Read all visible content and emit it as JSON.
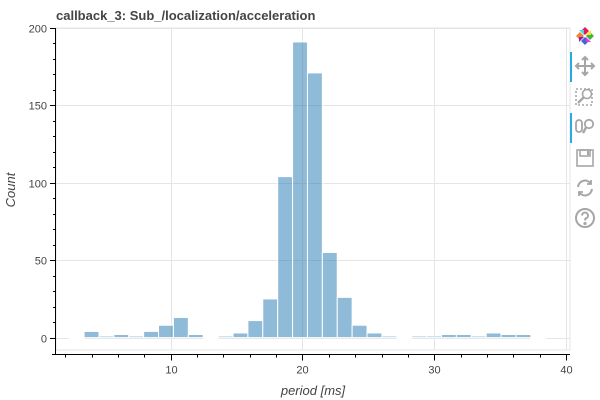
{
  "chart_data": {
    "type": "bar",
    "title": "callback_3: Sub_/localization/acceleration",
    "xlabel": "period [ms]",
    "ylabel": "Count",
    "xlim": [
      1.3,
      40.3
    ],
    "ylim": [
      -8,
      200
    ],
    "xticks": [
      10,
      20,
      30,
      40
    ],
    "yticks": [
      0,
      50,
      100,
      150,
      200
    ],
    "grid": true,
    "bar_color": "#1f77b4",
    "bin_width": 1.13,
    "bins": [
      {
        "x0": 2.3,
        "count": 0
      },
      {
        "x0": 3.43,
        "count": 4
      },
      {
        "x0": 4.56,
        "count": 1
      },
      {
        "x0": 5.69,
        "count": 2
      },
      {
        "x0": 6.82,
        "count": 1
      },
      {
        "x0": 7.95,
        "count": 4
      },
      {
        "x0": 9.08,
        "count": 8
      },
      {
        "x0": 10.21,
        "count": 13
      },
      {
        "x0": 11.34,
        "count": 2
      },
      {
        "x0": 12.47,
        "count": 0
      },
      {
        "x0": 13.6,
        "count": 1
      },
      {
        "x0": 14.73,
        "count": 3
      },
      {
        "x0": 15.86,
        "count": 11
      },
      {
        "x0": 16.99,
        "count": 25
      },
      {
        "x0": 18.12,
        "count": 104
      },
      {
        "x0": 19.25,
        "count": 191
      },
      {
        "x0": 20.38,
        "count": 171
      },
      {
        "x0": 21.51,
        "count": 55
      },
      {
        "x0": 22.64,
        "count": 26
      },
      {
        "x0": 23.77,
        "count": 8
      },
      {
        "x0": 24.9,
        "count": 3
      },
      {
        "x0": 26.03,
        "count": 1
      },
      {
        "x0": 27.16,
        "count": 0
      },
      {
        "x0": 28.29,
        "count": 1
      },
      {
        "x0": 29.42,
        "count": 1
      },
      {
        "x0": 30.55,
        "count": 2
      },
      {
        "x0": 31.68,
        "count": 2
      },
      {
        "x0": 32.81,
        "count": 1
      },
      {
        "x0": 33.94,
        "count": 3
      },
      {
        "x0": 35.07,
        "count": 2
      },
      {
        "x0": 36.2,
        "count": 2
      },
      {
        "x0": 37.33,
        "count": 0
      }
    ]
  },
  "toolbar": {
    "tools": [
      {
        "name": "bokeh-logo-icon",
        "active": false,
        "interactable": false
      },
      {
        "name": "pan-tool-icon",
        "active": true,
        "interactable": true
      },
      {
        "name": "box-zoom-tool-icon",
        "active": false,
        "interactable": true
      },
      {
        "name": "wheel-zoom-tool-icon",
        "active": true,
        "interactable": true
      },
      {
        "name": "save-tool-icon",
        "active": false,
        "interactable": true
      },
      {
        "name": "reset-tool-icon",
        "active": false,
        "interactable": true
      },
      {
        "name": "help-tool-icon",
        "active": false,
        "interactable": true
      }
    ]
  }
}
